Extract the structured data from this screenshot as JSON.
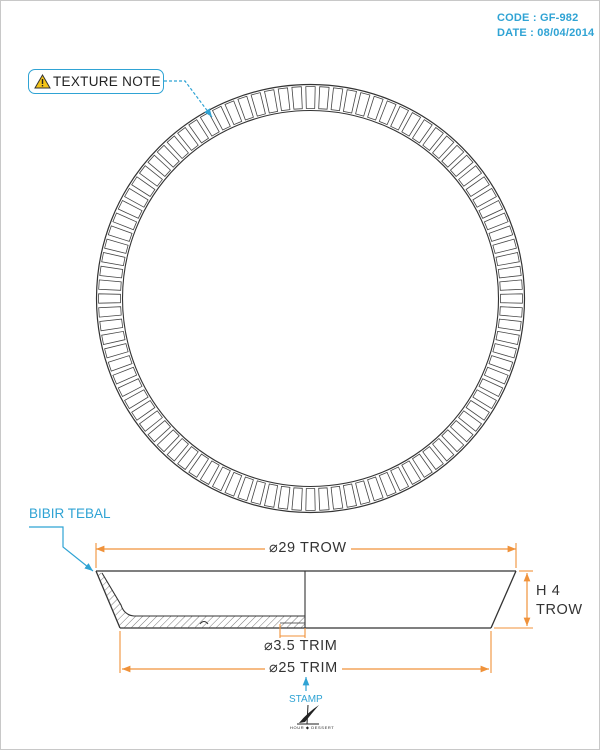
{
  "header": {
    "code": "CODE : GF-982",
    "date": "DATE : 08/04/2014"
  },
  "callouts": {
    "texture_note": "TEXTURE NOTE",
    "bibir_tebal": "BIBIR TEBAL",
    "stamp": "STAMP"
  },
  "dimensions": {
    "top_diameter": "⌀29 TROW",
    "height_line1": "H 4",
    "height_line2": "TROW",
    "trim_small": "⌀3.5 TRIM",
    "trim_bottom": "⌀25 TRIM"
  },
  "logo": {
    "text": "HOUR ◆ DESSERT"
  },
  "colors": {
    "accent": "#2fa3d4",
    "dimension": "#f0923a",
    "line": "#333333",
    "warning": "#f5c518"
  },
  "plate_texture": {
    "rib_count": 96
  }
}
